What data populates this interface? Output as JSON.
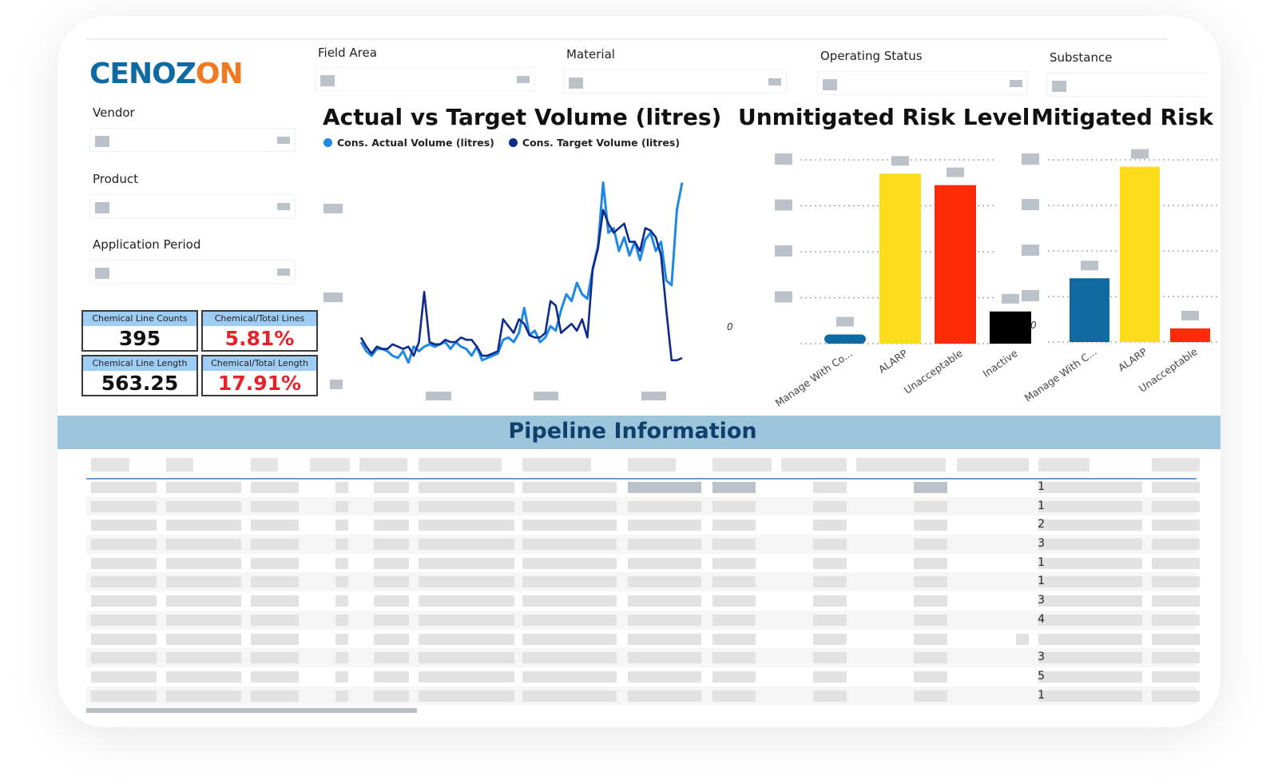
{
  "brand": {
    "part1": "CENOZ",
    "part2": "ON",
    "color1": "#0e6aa0",
    "color2": "#f07a21"
  },
  "slicers": {
    "vendor": "Vendor",
    "product": "Product",
    "application_period": "Application Period",
    "field_area": "Field Area",
    "material": "Material",
    "operating_status": "Operating Status",
    "substance": "Substance"
  },
  "kpis": [
    {
      "label": "Chemical Line Counts",
      "value": "395",
      "color": "black"
    },
    {
      "label": "Chemical/Total Lines",
      "value": "5.81%",
      "color": "red"
    },
    {
      "label": "Chemical Line Length",
      "value": "563.25",
      "color": "black"
    },
    {
      "label": "Chemical/Total Length",
      "value": "17.91%",
      "color": "red"
    }
  ],
  "chart_data": [
    {
      "type": "line",
      "title": "Actual vs Target Volume (litres)",
      "legend_position": "top-left",
      "series": [
        {
          "name": "Cons. Actual Volume (litres)",
          "color": "#1e88e5",
          "values": [
            20,
            16,
            14,
            17,
            17,
            16,
            14,
            13,
            16,
            11,
            18,
            16,
            18,
            19,
            18,
            19,
            20,
            17,
            20,
            18,
            17,
            14,
            18,
            12,
            13,
            14,
            15,
            21,
            22,
            20,
            24,
            35,
            23,
            25,
            20,
            22,
            27,
            25,
            34,
            41,
            38,
            46,
            41,
            39,
            52,
            62,
            90,
            68,
            70,
            60,
            66,
            58,
            64,
            56,
            65,
            68,
            60,
            64,
            47,
            45,
            78,
            90
          ]
        },
        {
          "name": "Cons. Target Volume (litres)",
          "color": "#0d2a8a",
          "values": [
            22,
            18,
            15,
            18,
            17,
            17,
            19,
            18,
            17,
            18,
            14,
            20,
            42,
            20,
            19,
            19,
            21,
            20,
            20,
            22,
            21,
            21,
            18,
            14,
            14,
            15,
            16,
            30,
            27,
            24,
            30,
            28,
            23,
            22,
            22,
            24,
            38,
            36,
            24,
            26,
            28,
            25,
            30,
            22,
            52,
            61,
            78,
            72,
            68,
            70,
            72,
            64,
            64,
            60,
            70,
            69,
            66,
            58,
            34,
            12,
            12,
            13
          ]
        }
      ],
      "yaxis_ticks_hidden": true
    },
    {
      "type": "bar",
      "title": "Unmitigated Risk Level",
      "categories": [
        "Manage With Co...",
        "ALARP",
        "Unacceptable",
        "Inactive"
      ],
      "values": [
        0.2,
        3.7,
        3.45,
        0.7
      ],
      "colors": [
        "#0e6aa0",
        "#fddc1b",
        "#ff2a06",
        "#000000"
      ],
      "ylim": [
        0,
        4
      ],
      "zero_label": "0",
      "grid": "dotted"
    },
    {
      "type": "bar",
      "title": "Mitigated Risk",
      "categories": [
        "Manage With C...",
        "ALARP",
        "Unacceptable"
      ],
      "values": [
        1.4,
        3.85,
        0.3
      ],
      "colors": [
        "#0e6aa0",
        "#fddc1b",
        "#ff2a06"
      ],
      "ylim": [
        0,
        4
      ],
      "zero_label": "0",
      "grid": "dotted"
    }
  ],
  "pipeline": {
    "title": "Pipeline Information",
    "row_values": [
      "1",
      "1",
      "2",
      "3",
      "1",
      "1",
      "3",
      "4",
      "",
      "3",
      "5",
      "1"
    ]
  }
}
